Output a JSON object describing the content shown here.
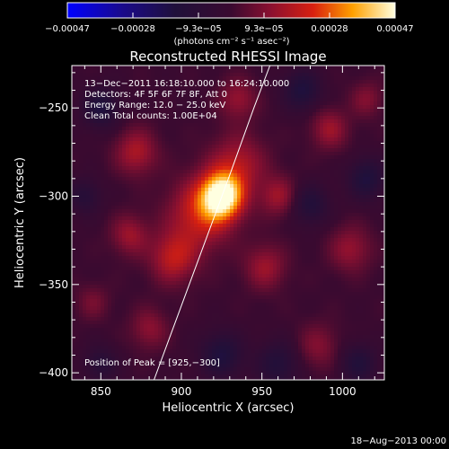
{
  "colorbar": {
    "tick_labels": [
      "−0.00047",
      "−0.00028",
      "−9.3e−05",
      "9.3e−05",
      "0.00028",
      "0.00047"
    ],
    "units": "(photons cm⁻² s⁻¹ asec⁻²)",
    "min": -0.00047,
    "max": 0.00047
  },
  "chart_data": {
    "type": "heatmap",
    "title": "Reconstructed RHESSI Image",
    "xlabel": "Heliocentric X (arcsec)",
    "ylabel": "Heliocentric Y (arcsec)",
    "xlim": [
      832,
      1026
    ],
    "ylim": [
      -404,
      -226
    ],
    "x_ticks": [
      850,
      900,
      950,
      1000
    ],
    "y_ticks": [
      -250,
      -300,
      -350,
      -400
    ],
    "x_tick_labels": [
      "850",
      "900",
      "950",
      "1000"
    ],
    "y_tick_labels": [
      "−250",
      "−300",
      "−350",
      "−400"
    ],
    "annotations": [
      "13−Dec−2011 16:18:10.000 to 16:24:10.000",
      "Detectors: 4F 5F 6F 7F 8F, Att 0",
      "Energy Range: 12.0 − 25.0 keV",
      "Clean     Total counts: 1.00E+04"
    ],
    "peak_label": "Position of Peak = [925,−300]",
    "peak": [
      925,
      -300
    ],
    "limb_curve": [
      [
        883,
        -404
      ],
      [
        900,
        -362
      ],
      [
        915,
        -325
      ],
      [
        930,
        -288
      ],
      [
        945,
        -250
      ],
      [
        955,
        -226
      ]
    ],
    "sources": [
      {
        "x": 925,
        "y": -300,
        "sigma": 9,
        "amp": 1.0
      },
      {
        "x": 912,
        "y": -310,
        "sigma": 14,
        "amp": 0.45
      },
      {
        "x": 935,
        "y": -282,
        "sigma": 12,
        "amp": 0.35
      },
      {
        "x": 895,
        "y": -335,
        "sigma": 10,
        "amp": 0.4
      },
      {
        "x": 872,
        "y": -275,
        "sigma": 9,
        "amp": 0.35
      },
      {
        "x": 868,
        "y": -322,
        "sigma": 8,
        "amp": 0.3
      },
      {
        "x": 960,
        "y": -300,
        "sigma": 8,
        "amp": 0.3
      },
      {
        "x": 952,
        "y": -340,
        "sigma": 9,
        "amp": 0.3
      },
      {
        "x": 992,
        "y": -262,
        "sigma": 8,
        "amp": 0.3
      },
      {
        "x": 1005,
        "y": -330,
        "sigma": 9,
        "amp": 0.28
      },
      {
        "x": 935,
        "y": -245,
        "sigma": 8,
        "amp": 0.28
      },
      {
        "x": 880,
        "y": -375,
        "sigma": 8,
        "amp": 0.25
      },
      {
        "x": 985,
        "y": -385,
        "sigma": 9,
        "amp": 0.22
      },
      {
        "x": 1015,
        "y": -245,
        "sigma": 7,
        "amp": 0.22
      },
      {
        "x": 845,
        "y": -360,
        "sigma": 7,
        "amp": 0.18
      },
      {
        "x": 850,
        "y": -250,
        "sigma": 8,
        "amp": -0.35
      },
      {
        "x": 975,
        "y": -240,
        "sigma": 8,
        "amp": -0.35
      },
      {
        "x": 980,
        "y": -305,
        "sigma": 8,
        "amp": -0.3
      },
      {
        "x": 1015,
        "y": -290,
        "sigma": 8,
        "amp": -0.35
      },
      {
        "x": 925,
        "y": -390,
        "sigma": 9,
        "amp": -0.35
      },
      {
        "x": 960,
        "y": -395,
        "sigma": 9,
        "amp": -0.3
      },
      {
        "x": 1010,
        "y": -395,
        "sigma": 8,
        "amp": -0.3
      },
      {
        "x": 850,
        "y": -395,
        "sigma": 7,
        "amp": -0.25
      },
      {
        "x": 840,
        "y": -300,
        "sigma": 7,
        "amp": -0.25
      }
    ]
  },
  "footer": {
    "timestamp": "18−Aug−2013 00:00"
  }
}
